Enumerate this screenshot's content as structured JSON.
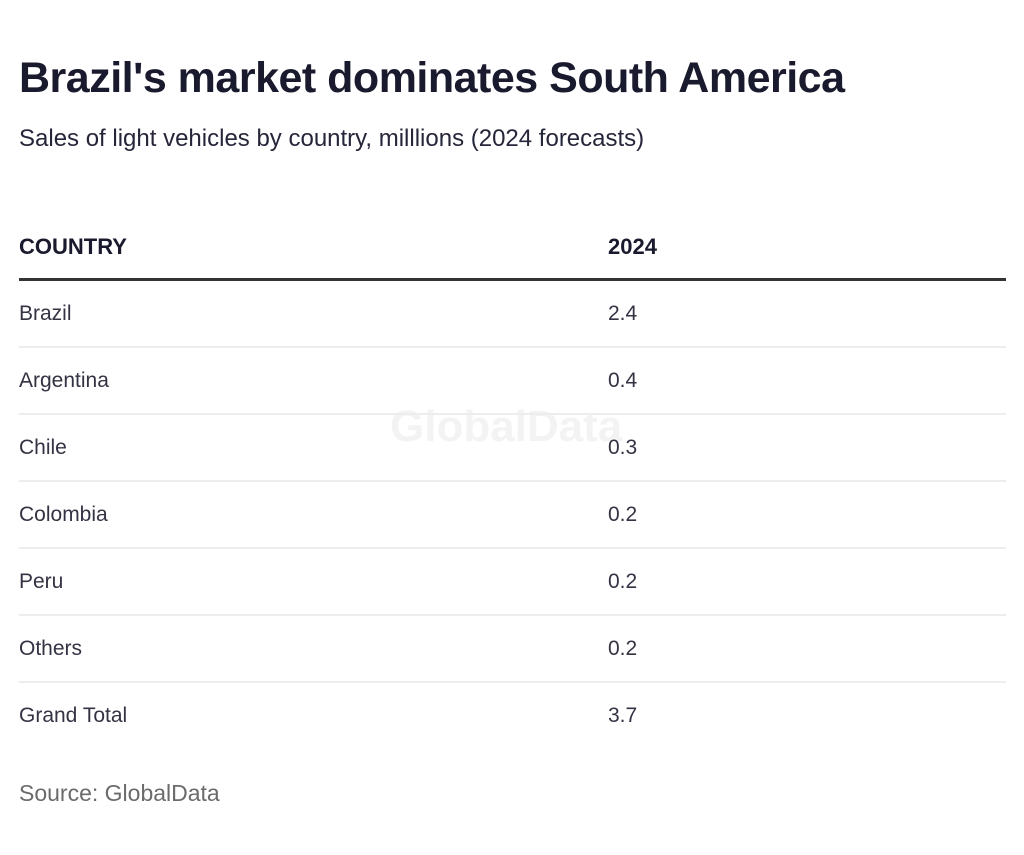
{
  "header": {
    "title": "Brazil's market dominates South America",
    "subtitle": "Sales of light vehicles by country, milllions (2024 forecasts)"
  },
  "chart_data": {
    "type": "table",
    "title": "Brazil's market dominates South America",
    "subtitle": "Sales of light vehicles by country, milllions (2024 forecasts)",
    "columns": [
      "COUNTRY",
      "2024"
    ],
    "rows": [
      {
        "country": "Brazil",
        "value": "2.4"
      },
      {
        "country": "Argentina",
        "value": "0.4"
      },
      {
        "country": "Chile",
        "value": "0.3"
      },
      {
        "country": "Colombia",
        "value": "0.2"
      },
      {
        "country": "Peru",
        "value": "0.2"
      },
      {
        "country": "Others",
        "value": "0.2"
      },
      {
        "country": "Grand Total",
        "value": "3.7"
      }
    ],
    "source": "Source: GlobalData"
  },
  "watermark": "GlobalData",
  "footer": {
    "source": "Source: GlobalData"
  }
}
